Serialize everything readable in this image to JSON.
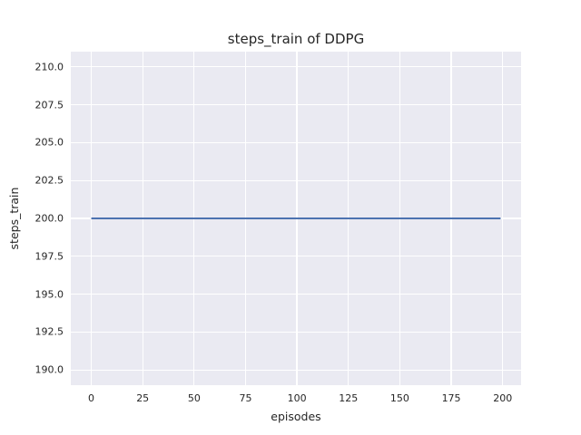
{
  "chart_data": {
    "type": "line",
    "title": "steps_train of DDPG",
    "xlabel": "episodes",
    "ylabel": "steps_train",
    "xlim": [
      -9.95,
      208.95
    ],
    "ylim": [
      189.0,
      211.0
    ],
    "grid": true,
    "legend": "none",
    "xticks": [
      {
        "value": 0,
        "label": "0"
      },
      {
        "value": 25,
        "label": "25"
      },
      {
        "value": 50,
        "label": "50"
      },
      {
        "value": 75,
        "label": "75"
      },
      {
        "value": 100,
        "label": "100"
      },
      {
        "value": 125,
        "label": "125"
      },
      {
        "value": 150,
        "label": "150"
      },
      {
        "value": 175,
        "label": "175"
      },
      {
        "value": 200,
        "label": "200"
      }
    ],
    "yticks": [
      {
        "value": 190.0,
        "label": "190.0"
      },
      {
        "value": 192.5,
        "label": "192.5"
      },
      {
        "value": 195.0,
        "label": "195.0"
      },
      {
        "value": 197.5,
        "label": "197.5"
      },
      {
        "value": 200.0,
        "label": "200.0"
      },
      {
        "value": 202.5,
        "label": "202.5"
      },
      {
        "value": 205.0,
        "label": "205.0"
      },
      {
        "value": 207.5,
        "label": "207.5"
      },
      {
        "value": 210.0,
        "label": "210.0"
      }
    ],
    "series": [
      {
        "name": "steps_train",
        "color": "#4c72b0",
        "line_width": 2,
        "x": [
          0,
          199
        ],
        "y": [
          200,
          200
        ],
        "description": "constant value 200 for every episode from 0 to 199"
      }
    ],
    "colors": {
      "figure_background": "#ffffff",
      "axes_background": "#eaeaf2",
      "grid": "#ffffff",
      "text": "#262626"
    }
  }
}
